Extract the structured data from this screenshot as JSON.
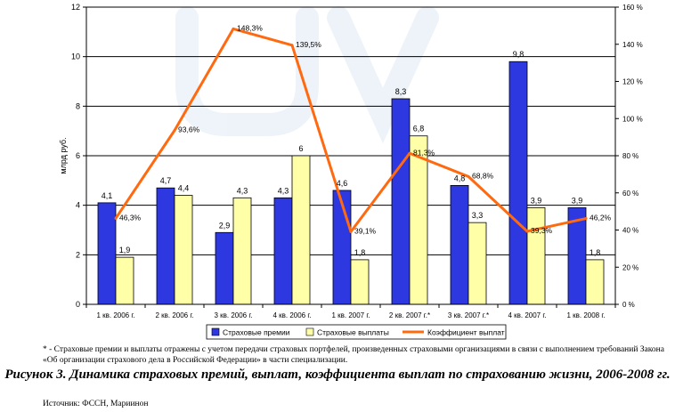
{
  "chart_data": {
    "type": "bar",
    "categories": [
      "1 кв. 2006 г.",
      "2 кв. 2006 г.",
      "3 кв. 2006 г.",
      "4 кв. 2006 г.",
      "1 кв. 2007 г.",
      "2 кв. 2007 г.*",
      "3 кв. 2007 г.*",
      "4 кв. 2007 г.",
      "1 кв. 2008 г."
    ],
    "series": [
      {
        "name": "Страховые премии",
        "axis": "left",
        "color": "#2d38e0",
        "values": [
          4.1,
          4.7,
          2.9,
          4.3,
          4.6,
          8.3,
          4.8,
          9.8,
          3.9
        ],
        "labels": [
          "4,1",
          "4,7",
          "2,9",
          "4,3",
          "4,6",
          "8,3",
          "4,8",
          "9,8",
          "3,9"
        ]
      },
      {
        "name": "Страховые выплаты",
        "axis": "left",
        "color": "#ffffa8",
        "values": [
          1.9,
          4.4,
          4.3,
          6.0,
          1.8,
          6.8,
          3.3,
          3.9,
          1.8
        ],
        "labels": [
          "1,9",
          "4,4",
          "4,3",
          "6",
          "1,8",
          "6,8",
          "3,3",
          "3,9",
          "1,8"
        ]
      },
      {
        "name": "Коэффициент выплат",
        "type": "line",
        "axis": "right",
        "color": "#ff6a10",
        "values": [
          46.3,
          93.6,
          148.3,
          139.5,
          39.1,
          81.3,
          68.8,
          39.3,
          46.2
        ],
        "labels": [
          "46,3%",
          "93,6%",
          "148,3%",
          "139,5%",
          "39,1%",
          "81,3%",
          "68,8%",
          "39,3%",
          "46,2%"
        ]
      }
    ],
    "ylabel": "млрд руб.",
    "ylim": [
      0,
      12
    ],
    "yticks": [
      "0",
      "2",
      "4",
      "6",
      "8",
      "10",
      "12"
    ],
    "y2lim": [
      0,
      160
    ],
    "y2ticks": [
      "0 %",
      "20 %",
      "40 %",
      "60 %",
      "80 %",
      "100 %",
      "120 %",
      "140 %",
      "160 %"
    ],
    "grid": true,
    "legend": "bottom"
  },
  "footnote": "* - Страховые премии и выплаты отражены с учетом передачи страховых портфелей, произведенных страховыми организациями в связи с выполнением требований Закона «Об организации страхового дела в Российской Федерации» в части специализации.",
  "caption": "Рисунок 3. Динамика страховых премий, выплат, коэффициента выплат по страхованию жизни, 2006-2008 гг.",
  "source": "Источник: ФССН, Мариинон"
}
